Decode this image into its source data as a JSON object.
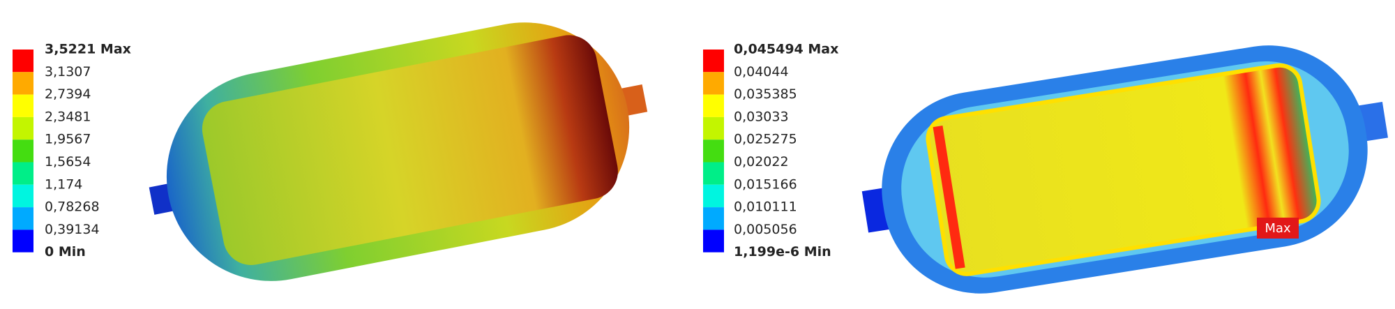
{
  "legends": [
    {
      "labels": [
        "3,5221 Max",
        "3,1307",
        "2,7394",
        "2,3481",
        "1,9567",
        "1,5654",
        "1,174",
        "0,78268",
        "0,39134",
        "0 Min"
      ],
      "colors": [
        "#ff0000",
        "#ffaa00",
        "#ffff00",
        "#c3f500",
        "#44dd11",
        "#00ee88",
        "#00f5e0",
        "#00aaff",
        "#0000ff"
      ]
    },
    {
      "labels": [
        "0,045494 Max",
        "0,04044",
        "0,035385",
        "0,03033",
        "0,025275",
        "0,02022",
        "0,015166",
        "0,010111",
        "0,005056",
        "1,199e-6 Min"
      ],
      "colors": [
        "#ff0000",
        "#ffaa00",
        "#ffff00",
        "#c3f500",
        "#44dd11",
        "#00ee88",
        "#00f5e0",
        "#00aaff",
        "#0000ff"
      ]
    }
  ],
  "annotations": {
    "max_tag": "Max"
  }
}
